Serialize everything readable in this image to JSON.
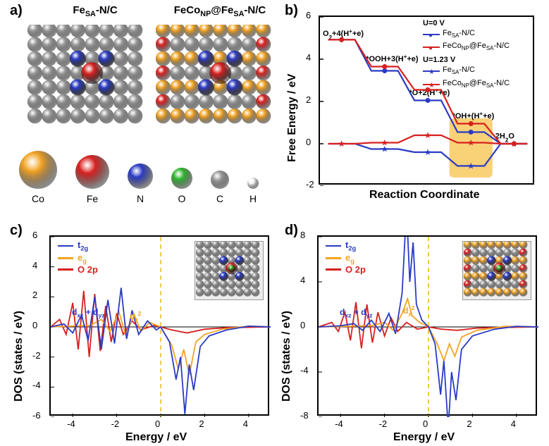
{
  "labels": {
    "a": "a)",
    "b": "b)",
    "c": "c)",
    "d": "d)"
  },
  "atoms": {
    "Co": {
      "color": "#f2a324",
      "r": 27
    },
    "Fe": {
      "color": "#d8201f",
      "r": 24
    },
    "N": {
      "color": "#2a3bc5",
      "r": 18
    },
    "O": {
      "color": "#2eb82e",
      "r": 15
    },
    "C": {
      "color": "#9b9b9b",
      "r": 13
    },
    "H": {
      "color": "#f6f6f6",
      "r": 8
    }
  },
  "panel_a": {
    "title_left": "Fe",
    "title_left_sub": "SA",
    "title_left_tail": "-N/C",
    "title_right": "FeCo",
    "title_right_sub": "NP",
    "title_right_mid": "@Fe",
    "title_right_sub2": "SA",
    "title_right_tail": "-N/C",
    "grid": {
      "cols": 8,
      "rows": 7,
      "pitch": 21,
      "atom_r": 11
    },
    "left_bg_color": "#9b9b9b",
    "n_sites": [
      [
        3,
        2
      ],
      [
        5,
        2
      ],
      [
        3,
        4
      ],
      [
        5,
        4
      ]
    ],
    "fe_site": [
      4,
      3
    ],
    "right_fe_rows": [
      1,
      3,
      5
    ],
    "right_co_rows": [
      0,
      2,
      4,
      6
    ]
  },
  "panel_b": {
    "x_label": "Reaction Coordinate",
    "y_label": "Free Energy / eV",
    "y_min": -2,
    "y_max": 6,
    "y_ticks": [
      -2,
      0,
      2,
      4,
      6
    ],
    "steps": [
      "O₂+4(H⁺+e)",
      "*OOH+3(H⁺+e)",
      "*O+2(H⁺+e)",
      "*OH+(H⁺+e)",
      "2H₂O"
    ],
    "step_labels": {
      "0": "O",
      "0_sub": "2",
      "0_tail": "+4(H",
      "0_sup": "+",
      "0_end": "+e)",
      "1": "*OOH+3(H",
      "1_sup": "+",
      "1_end": "+e)",
      "2": "*O+2(H",
      "2_sup": "+",
      "2_end": "+e)",
      "3": "*OH+(H",
      "3_sup": "+",
      "3_end": "+e)",
      "4": "2H",
      "4_sub": "2",
      "4_end": "O"
    },
    "highlight_step": 3,
    "highlight_color": "#f7c24a",
    "series": [
      {
        "name": "Fe_SA U0",
        "color": "#2a3bc5",
        "marker": "circle",
        "y": [
          4.92,
          3.45,
          2.05,
          0.55,
          0.0
        ]
      },
      {
        "name": "FeCo U0",
        "color": "#d8201f",
        "marker": "circle",
        "y": [
          4.92,
          3.65,
          2.55,
          0.95,
          0.0
        ]
      },
      {
        "name": "Fe_SA U1.23",
        "color": "#2a3bc5",
        "marker": "star",
        "y": [
          0.0,
          -0.25,
          -0.4,
          -1.05,
          0.0
        ]
      },
      {
        "name": "FeCo U1.23",
        "color": "#d8201f",
        "marker": "star",
        "y": [
          0.0,
          0.05,
          0.4,
          0.05,
          0.0
        ]
      }
    ],
    "legend": {
      "u0": "U=0 V",
      "u1": "U=1.23 V",
      "fe": "Fe",
      "fe_sub": "SA",
      "fe_tail": "-N/C",
      "feco": "FeCo",
      "feco_sub": "NP",
      "feco_mid": "@Fe",
      "feco_sub2": "SA",
      "feco_tail": "-N/C"
    },
    "colors": {
      "blue": "#2a3bc5",
      "red": "#d8201f"
    }
  },
  "dos_common": {
    "x_label": "Energy / eV",
    "y_label": "DOS (states / eV)",
    "x_min": -5,
    "x_max": 5,
    "x_ticks": [
      -4,
      -2,
      0,
      2,
      4
    ],
    "fermi_color": "#f2c94c",
    "legend": [
      {
        "label": "t",
        "sub": "2g",
        "color": "#2a3bc5"
      },
      {
        "label": "e",
        "sub": "g",
        "color": "#f2a324"
      },
      {
        "label": "O 2p",
        "sub": "",
        "color": "#d8201f"
      }
    ],
    "orb_labels": {
      "dxz": "d",
      "dxz_sub": "xz",
      "plus": " + d",
      "dyz_sub": "yz",
      "dz2": "d",
      "dz2_sub": "z",
      "dz2_sup": "2"
    },
    "orb_colors": {
      "dxz": "#2a3bc5",
      "dz2": "#f2a324"
    }
  },
  "panel_c": {
    "y_min": -6,
    "y_max": 6,
    "y_ticks": [
      -6,
      -4,
      -2,
      0,
      2,
      4,
      6
    ],
    "series": {
      "t2g": {
        "color": "#2a3bc5",
        "pts": [
          [
            -5,
            0
          ],
          [
            -4.4,
            0.2
          ],
          [
            -4.0,
            -0.4
          ],
          [
            -3.6,
            0.8
          ],
          [
            -3.3,
            -0.9
          ],
          [
            -3.0,
            2.0
          ],
          [
            -2.7,
            -1.5
          ],
          [
            -2.4,
            1.8
          ],
          [
            -2.1,
            -1.1
          ],
          [
            -1.8,
            2.6
          ],
          [
            -1.55,
            -0.8
          ],
          [
            -1.3,
            1.1
          ],
          [
            -1.0,
            -0.5
          ],
          [
            -0.6,
            0.4
          ],
          [
            -0.2,
            -0.2
          ],
          [
            0.0,
            0.0
          ],
          [
            0.4,
            -1.0
          ],
          [
            0.7,
            -3.5
          ],
          [
            0.9,
            -2.0
          ],
          [
            1.1,
            -5.8
          ],
          [
            1.3,
            -2.5
          ],
          [
            1.5,
            -4.2
          ],
          [
            1.8,
            -1.3
          ],
          [
            2.2,
            -0.6
          ],
          [
            3.0,
            -0.2
          ],
          [
            4.0,
            0.05
          ],
          [
            5,
            0
          ]
        ]
      },
      "eg": {
        "color": "#f2a324",
        "pts": [
          [
            -5,
            0
          ],
          [
            -3.2,
            0.1
          ],
          [
            -2.7,
            0.5
          ],
          [
            -2.3,
            -0.3
          ],
          [
            -1.9,
            1.0
          ],
          [
            -1.6,
            -0.5
          ],
          [
            -1.2,
            0.8
          ],
          [
            -0.9,
            -0.3
          ],
          [
            -0.5,
            0.3
          ],
          [
            0,
            0
          ],
          [
            0.5,
            -1.2
          ],
          [
            0.8,
            -2.8
          ],
          [
            1.05,
            -1.5
          ],
          [
            1.3,
            -3.2
          ],
          [
            1.6,
            -1.0
          ],
          [
            2.0,
            -0.5
          ],
          [
            2.8,
            -0.15
          ],
          [
            4.0,
            0.05
          ],
          [
            5,
            0
          ]
        ]
      },
      "o2p": {
        "color": "#d8201f",
        "pts": [
          [
            -5,
            0
          ],
          [
            -4.6,
            0.5
          ],
          [
            -4.3,
            -0.5
          ],
          [
            -4.0,
            1.6
          ],
          [
            -3.75,
            -1.5
          ],
          [
            -3.5,
            2.4
          ],
          [
            -3.25,
            -2.0
          ],
          [
            -3.0,
            2.2
          ],
          [
            -2.75,
            -1.6
          ],
          [
            -2.5,
            1.4
          ],
          [
            -2.25,
            -1.0
          ],
          [
            -2.0,
            0.9
          ],
          [
            -1.7,
            -0.5
          ],
          [
            -1.3,
            0.4
          ],
          [
            -0.9,
            -0.2
          ],
          [
            -0.3,
            0.1
          ],
          [
            0,
            0
          ],
          [
            0.5,
            -0.2
          ],
          [
            1.2,
            -0.4
          ],
          [
            2.0,
            -0.15
          ],
          [
            3.0,
            -0.05
          ],
          [
            5,
            0
          ]
        ]
      }
    }
  },
  "panel_d": {
    "y_min": -8,
    "y_max": 8,
    "y_ticks": [
      -8,
      -4,
      0,
      4,
      8
    ],
    "series": {
      "t2g": {
        "color": "#2a3bc5",
        "pts": [
          [
            -5,
            0
          ],
          [
            -4.0,
            0.1
          ],
          [
            -3.4,
            0.3
          ],
          [
            -3.0,
            -0.3
          ],
          [
            -2.6,
            0.6
          ],
          [
            -2.2,
            -0.4
          ],
          [
            -1.8,
            1.2
          ],
          [
            -1.5,
            -0.6
          ],
          [
            -1.2,
            3.0
          ],
          [
            -1.0,
            10.5
          ],
          [
            -0.85,
            4.0
          ],
          [
            -0.7,
            7.5
          ],
          [
            -0.55,
            2.0
          ],
          [
            -0.3,
            0.6
          ],
          [
            0,
            0
          ],
          [
            0.3,
            -1.5
          ],
          [
            0.55,
            -6.0
          ],
          [
            0.7,
            -3.0
          ],
          [
            0.9,
            -9.0
          ],
          [
            1.05,
            -4.0
          ],
          [
            1.25,
            -6.5
          ],
          [
            1.5,
            -2.0
          ],
          [
            2.0,
            -0.8
          ],
          [
            3.0,
            -0.2
          ],
          [
            4.0,
            0.05
          ],
          [
            5,
            0
          ]
        ]
      },
      "eg": {
        "color": "#f2a324",
        "pts": [
          [
            -5,
            0
          ],
          [
            -2.6,
            0.1
          ],
          [
            -2.0,
            0.4
          ],
          [
            -1.6,
            -0.3
          ],
          [
            -1.2,
            1.2
          ],
          [
            -0.95,
            2.5
          ],
          [
            -0.75,
            1.0
          ],
          [
            -0.4,
            0.4
          ],
          [
            0,
            0
          ],
          [
            0.4,
            -1.5
          ],
          [
            0.7,
            -3.0
          ],
          [
            0.95,
            -1.5
          ],
          [
            1.2,
            -2.6
          ],
          [
            1.5,
            -0.9
          ],
          [
            2.2,
            -0.3
          ],
          [
            3.5,
            0.05
          ],
          [
            5,
            0
          ]
        ]
      },
      "o2p": {
        "color": "#d8201f",
        "pts": [
          [
            -5,
            0
          ],
          [
            -4.4,
            0.4
          ],
          [
            -4.1,
            -0.4
          ],
          [
            -3.8,
            1.3
          ],
          [
            -3.55,
            -1.2
          ],
          [
            -3.3,
            2.2
          ],
          [
            -3.05,
            -1.9
          ],
          [
            -2.8,
            2.0
          ],
          [
            -2.55,
            -1.4
          ],
          [
            -2.3,
            1.3
          ],
          [
            -2.0,
            -0.8
          ],
          [
            -1.7,
            0.8
          ],
          [
            -1.4,
            -0.4
          ],
          [
            -1.0,
            0.4
          ],
          [
            -0.5,
            -0.2
          ],
          [
            0,
            0
          ],
          [
            0.6,
            -0.2
          ],
          [
            1.3,
            -0.3
          ],
          [
            2.2,
            -0.1
          ],
          [
            3.2,
            -0.05
          ],
          [
            5,
            0
          ]
        ]
      }
    }
  }
}
